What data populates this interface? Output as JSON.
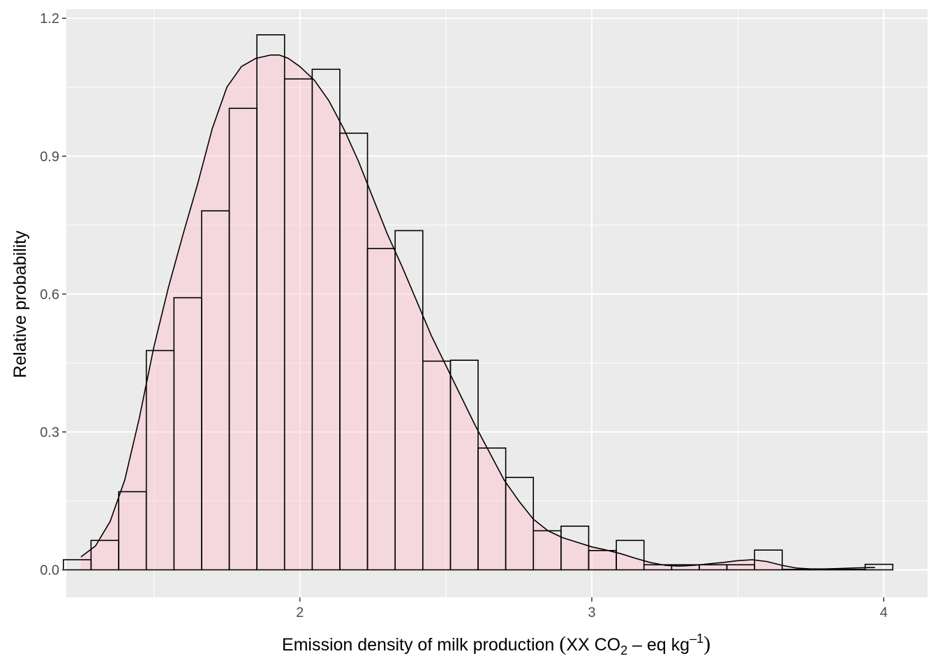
{
  "chart_data": {
    "type": "bar",
    "xlabel": {
      "prefix": "Emission density of milk production",
      "unit_main": "XX CO",
      "unit_sub": "2",
      "unit_mid": " – eq kg",
      "unit_sup": "–1"
    },
    "ylabel": "Relative probability",
    "xlim": [
      1.2,
      4.15
    ],
    "ylim": [
      -0.06,
      1.22
    ],
    "x_ticks": [
      2,
      3,
      4
    ],
    "x_tick_labels": [
      "2",
      "3",
      "4"
    ],
    "y_ticks": [
      0,
      0.3,
      0.6,
      0.9,
      1.2
    ],
    "y_tick_labels": [
      "0.0",
      "0.3",
      "0.6",
      "0.9",
      "1.2"
    ],
    "grid": true,
    "histogram": {
      "bin_width": 0.0947,
      "bin_start": 1.19,
      "fill": "none",
      "values": [
        0.022,
        0.064,
        0.17,
        0.477,
        0.592,
        0.781,
        1.004,
        1.164,
        1.068,
        1.089,
        0.95,
        0.699,
        0.738,
        0.454,
        0.456,
        0.265,
        0.201,
        0.085,
        0.095,
        0.042,
        0.064,
        0.011,
        0.011,
        0.011,
        0.011,
        0.043,
        0.001,
        0.001,
        0.001,
        0.012
      ]
    },
    "density": {
      "fill": "#ffc0cb",
      "fill_opacity": 0.45,
      "x": [
        1.25,
        1.3,
        1.35,
        1.4,
        1.45,
        1.5,
        1.55,
        1.6,
        1.65,
        1.7,
        1.75,
        1.8,
        1.85,
        1.9,
        1.93,
        1.96,
        2.0,
        2.05,
        2.1,
        2.15,
        2.2,
        2.25,
        2.3,
        2.35,
        2.4,
        2.45,
        2.5,
        2.55,
        2.6,
        2.65,
        2.7,
        2.75,
        2.8,
        2.85,
        2.9,
        2.95,
        3.0,
        3.05,
        3.1,
        3.15,
        3.2,
        3.25,
        3.3,
        3.35,
        3.4,
        3.45,
        3.5,
        3.55,
        3.6,
        3.65,
        3.7,
        3.75,
        3.8,
        3.85,
        3.9,
        3.95,
        3.97
      ],
      "y": [
        0.028,
        0.052,
        0.105,
        0.195,
        0.33,
        0.485,
        0.615,
        0.73,
        0.84,
        0.96,
        1.05,
        1.095,
        1.113,
        1.12,
        1.12,
        1.113,
        1.095,
        1.065,
        1.02,
        0.96,
        0.89,
        0.81,
        0.73,
        0.66,
        0.585,
        0.51,
        0.445,
        0.38,
        0.315,
        0.255,
        0.195,
        0.15,
        0.11,
        0.085,
        0.07,
        0.06,
        0.05,
        0.043,
        0.035,
        0.025,
        0.016,
        0.01,
        0.008,
        0.01,
        0.013,
        0.016,
        0.02,
        0.022,
        0.018,
        0.01,
        0.004,
        0.002,
        0.002,
        0.003,
        0.004,
        0.005,
        0.005
      ]
    }
  }
}
